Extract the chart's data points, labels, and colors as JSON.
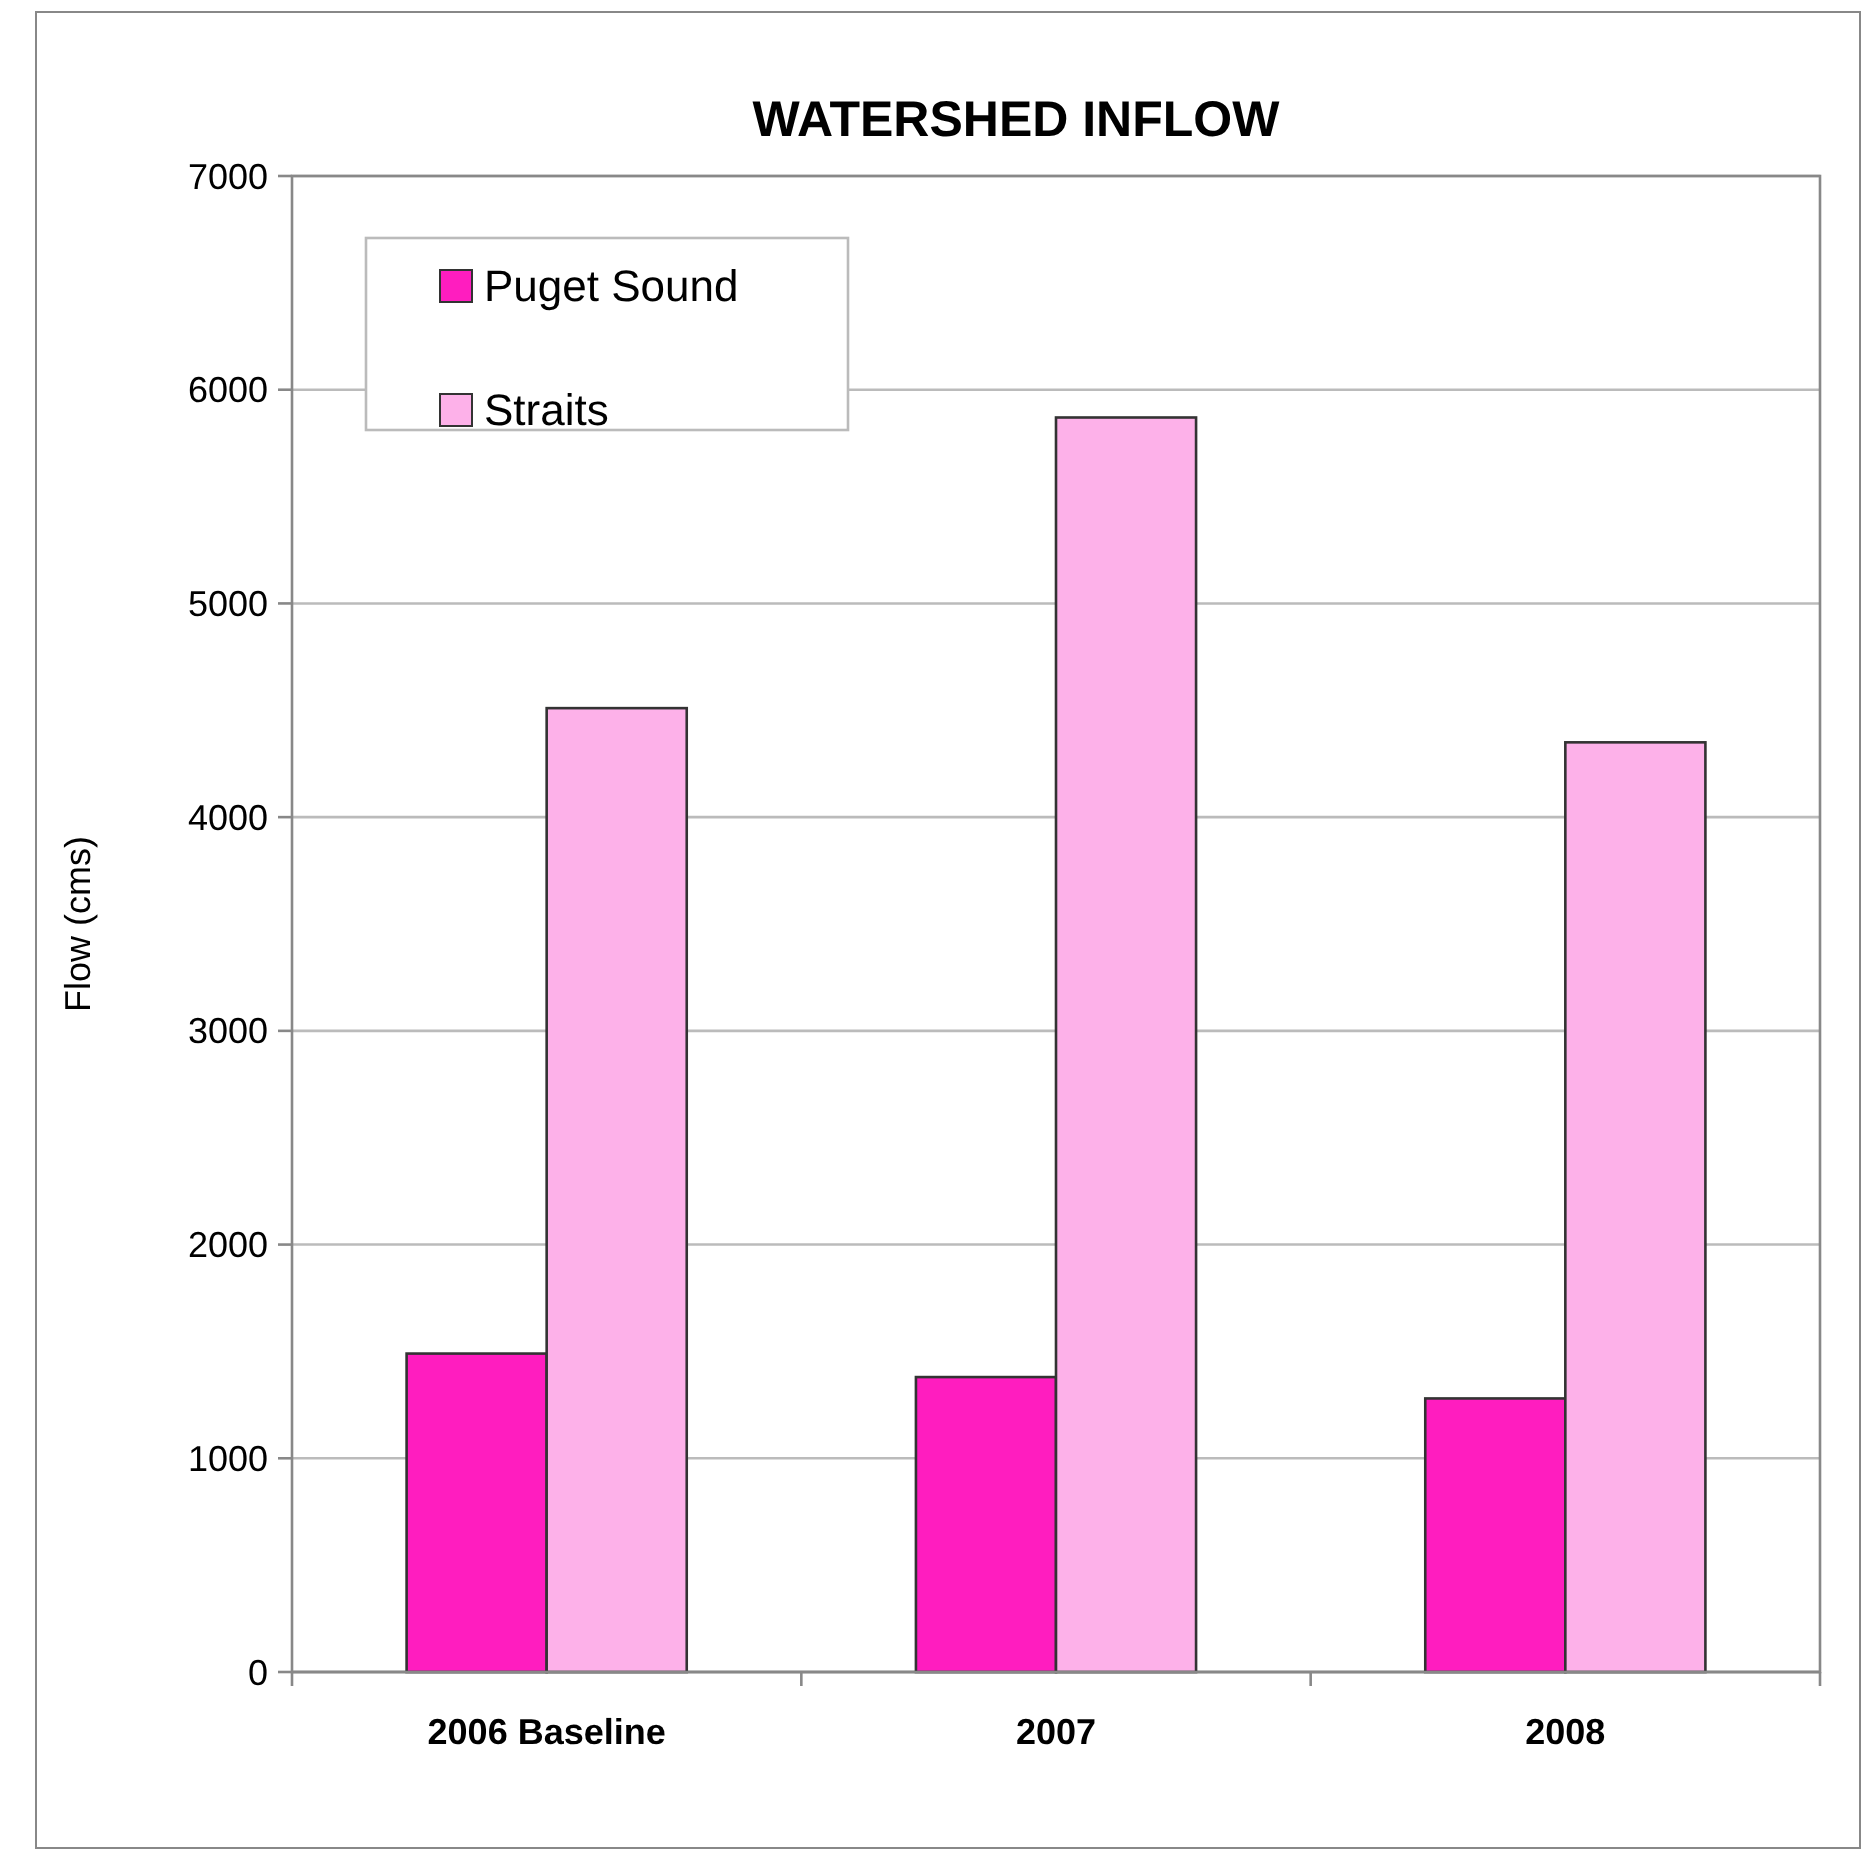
{
  "chart_data": {
    "type": "bar",
    "title": "WATERSHED INFLOW",
    "ylabel": "Flow (cms)",
    "categories": [
      "2006 Baseline",
      "2007",
      "2008"
    ],
    "series": [
      {
        "name": "Puget Sound",
        "color": "#ff1dbf",
        "values": [
          1490,
          1380,
          1280
        ]
      },
      {
        "name": "Straits",
        "color": "#fdb1e9",
        "values": [
          4510,
          5870,
          4350
        ]
      }
    ],
    "ylim": [
      0,
      7000
    ],
    "yticks": [
      0,
      1000,
      2000,
      3000,
      4000,
      5000,
      6000,
      7000
    ],
    "grid": "y",
    "legend": "top left"
  }
}
